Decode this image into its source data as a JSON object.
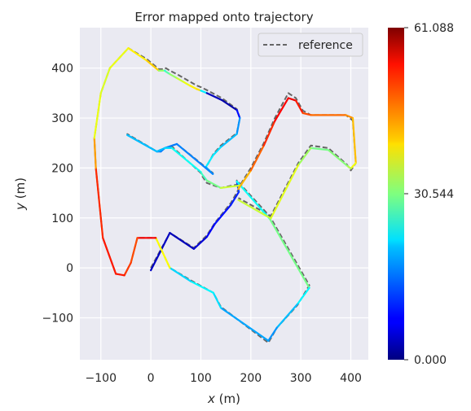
{
  "chart_data": {
    "type": "line",
    "title": "Error mapped onto trajectory",
    "xlabel_var": "x",
    "xlabel_unit": " (m)",
    "ylabel_var": "y",
    "ylabel_unit": " (m)",
    "xlim": [
      -142,
      435
    ],
    "ylim": [
      -184,
      481
    ],
    "xticks": [
      -100,
      0,
      100,
      200,
      300,
      400
    ],
    "xtick_labels": [
      "−100",
      "0",
      "100",
      "200",
      "300",
      "400"
    ],
    "yticks": [
      -100,
      0,
      100,
      200,
      300,
      400
    ],
    "ytick_labels": [
      "−100",
      "0",
      "100",
      "200",
      "300",
      "400"
    ],
    "grid": true,
    "legend": {
      "placement": "top-right",
      "entries": [
        "reference"
      ]
    },
    "colorbar": {
      "min": 0.0,
      "max": 61.088,
      "ticks": [
        0.0,
        30.544,
        61.088
      ],
      "tick_labels": [
        "0.000",
        "30.544",
        "61.088"
      ],
      "colormap": "jet"
    },
    "reference": {
      "name": "reference",
      "x": [
        0,
        38,
        86,
        112,
        128,
        160,
        176,
        172,
        238,
        317,
        293,
        252,
        235,
        140,
        125,
        80,
        38,
        10,
        -27,
        -40,
        -53,
        -70,
        -96,
        -110,
        -113,
        -100,
        -82,
        -45,
        -8,
        16,
        28,
        30,
        38,
        52,
        66,
        78,
        92,
        100,
        112,
        142,
        172,
        178,
        172,
        140,
        125,
        110,
        124,
        52,
        28,
        20,
        12,
        -47,
        -47,
        12,
        28,
        42,
        100,
        102,
        112,
        140,
        178,
        175,
        200,
        226,
        248,
        275,
        290,
        304,
        320,
        390,
        404,
        410,
        400,
        392,
        355,
        320,
        295,
        240,
        175
      ],
      "y": [
        0,
        70,
        40,
        65,
        90,
        130,
        158,
        175,
        103,
        -35,
        -75,
        -120,
        -150,
        -78,
        -50,
        -25,
        0,
        60,
        60,
        10,
        -15,
        -12,
        60,
        200,
        260,
        350,
        400,
        440,
        418,
        398,
        398,
        400,
        395,
        388,
        380,
        373,
        365,
        362,
        356,
        340,
        318,
        300,
        270,
        245,
        228,
        200,
        190,
        248,
        240,
        233,
        233,
        268,
        268,
        233,
        240,
        243,
        190,
        185,
        170,
        160,
        168,
        160,
        200,
        250,
        300,
        350,
        340,
        315,
        306,
        306,
        295,
        210,
        195,
        207,
        240,
        245,
        210,
        104,
        140
      ],
      "color": "#666666",
      "style": "dashed"
    },
    "estimate": {
      "x": [
        0,
        38,
        86,
        112,
        128,
        160,
        176,
        172,
        238,
        317,
        293,
        252,
        235,
        140,
        125,
        80,
        38,
        10,
        -27,
        -40,
        -53,
        -70,
        -96,
        -110,
        -113,
        -100,
        -82,
        -45,
        -8,
        16,
        28,
        30,
        38,
        52,
        66,
        78,
        92,
        100,
        112,
        142,
        172,
        178,
        172,
        140,
        125,
        110,
        124,
        52,
        28,
        20,
        12,
        -47,
        -47,
        12,
        28,
        42,
        100,
        102,
        112,
        140,
        178,
        175,
        200,
        226,
        248,
        275,
        290,
        304,
        320,
        390,
        404,
        410,
        400,
        392,
        355,
        320,
        295,
        240,
        175
      ],
      "y": [
        -5,
        70,
        38,
        62,
        88,
        126,
        152,
        173,
        98,
        -40,
        -73,
        -120,
        -146,
        -80,
        -50,
        -27,
        0,
        60,
        60,
        10,
        -15,
        -12,
        60,
        200,
        260,
        350,
        400,
        440,
        415,
        395,
        395,
        393,
        388,
        380,
        372,
        365,
        358,
        355,
        350,
        336,
        316,
        300,
        268,
        242,
        226,
        202,
        188,
        248,
        240,
        233,
        233,
        266,
        266,
        233,
        240,
        240,
        192,
        188,
        175,
        160,
        165,
        158,
        195,
        245,
        294,
        340,
        335,
        310,
        306,
        306,
        300,
        210,
        199,
        205,
        236,
        240,
        206,
        99,
        136
      ],
      "error": [
        5,
        3,
        4,
        6,
        8,
        9,
        10,
        12,
        35,
        25,
        20,
        18,
        15,
        20,
        22,
        23,
        18,
        58,
        50,
        48,
        52,
        52,
        52,
        50,
        38,
        36,
        36,
        38,
        40,
        42,
        22,
        26,
        30,
        34,
        36,
        38,
        40,
        40,
        4,
        3,
        2,
        15,
        18,
        20,
        22,
        22,
        16,
        15,
        15,
        15,
        16,
        20,
        20,
        18,
        20,
        22,
        25,
        26,
        28,
        32,
        38,
        40,
        45,
        50,
        52,
        55,
        54,
        50,
        48,
        46,
        44,
        40,
        35,
        32,
        30,
        30,
        35,
        38,
        32
      ]
    }
  }
}
